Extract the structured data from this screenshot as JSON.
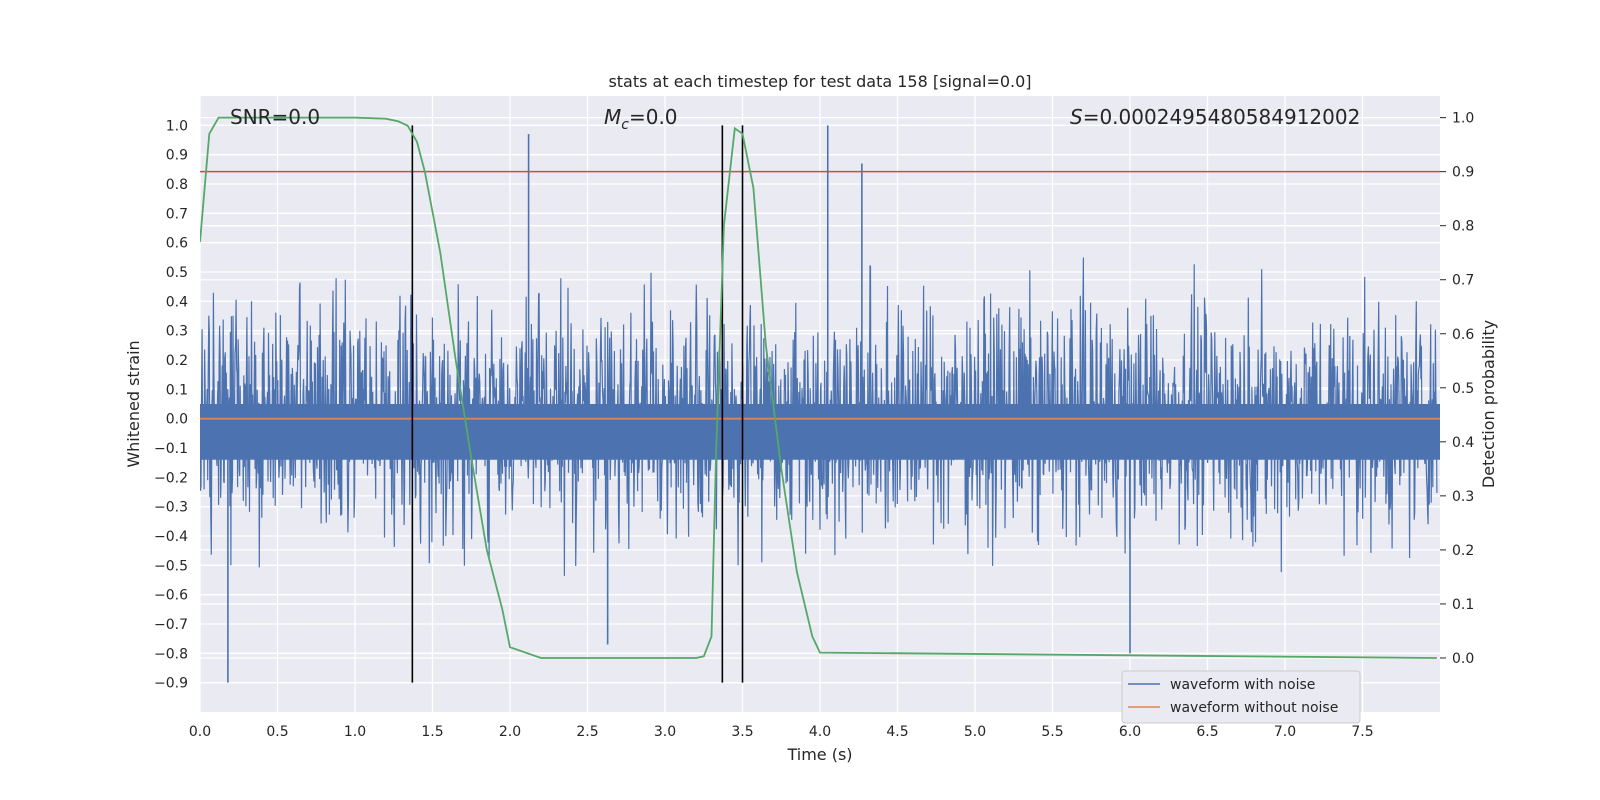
{
  "chart_data": {
    "type": "line",
    "title": "stats at each timestep for test data 158 [signal=0.0]",
    "xlabel": "Time (s)",
    "ylabel": "Whitened strain",
    "ylabel_right": "Detection probability",
    "xlim": [
      0.0,
      8.0
    ],
    "ylim": [
      -1.0,
      1.1
    ],
    "ylim_right": [
      -0.1,
      1.04
    ],
    "x_ticks": [
      "0.0",
      "0.5",
      "1.0",
      "1.5",
      "2.0",
      "2.5",
      "3.0",
      "3.5",
      "4.0",
      "4.5",
      "5.0",
      "5.5",
      "6.0",
      "6.5",
      "7.0",
      "7.5"
    ],
    "y_ticks": [
      "1.0",
      "0.9",
      "0.8",
      "0.7",
      "0.6",
      "0.5",
      "0.4",
      "0.3",
      "0.2",
      "0.1",
      "0.0",
      "−0.1",
      "−0.2",
      "−0.3",
      "−0.4",
      "−0.5",
      "−0.6",
      "−0.7",
      "−0.8",
      "−0.9"
    ],
    "y_ticks_right": [
      "1.0",
      "0.9",
      "0.8",
      "0.7",
      "0.6",
      "0.5",
      "0.4",
      "0.3",
      "0.2",
      "0.1",
      "0.0"
    ],
    "grid": true,
    "legend_position": "bottom-right",
    "annotations": {
      "snr": "SNR=0.0",
      "mc_symbol": "M",
      "mc_sub": "c",
      "mc_value": "=0.0",
      "s_symbol": "S",
      "s_value": "=0.0002495480584912002"
    },
    "series": [
      {
        "name": "waveform with noise",
        "color": "#4c72b0",
        "kind": "noise",
        "typical_amplitude": 0.5,
        "peaks": [
          [
            2.12,
            0.97
          ],
          [
            4.05,
            1.0
          ],
          [
            4.27,
            0.87
          ],
          [
            0.18,
            -0.9
          ],
          [
            6.0,
            -0.8
          ],
          [
            2.63,
            -0.77
          ]
        ]
      },
      {
        "name": "waveform without noise",
        "color": "#dd8452",
        "kind": "constant",
        "value": 0.0
      },
      {
        "name": "detection probability",
        "color": "#55a868",
        "axis": "right",
        "x": [
          0.0,
          0.06,
          0.12,
          0.2,
          0.5,
          1.0,
          1.2,
          1.28,
          1.34,
          1.4,
          1.45,
          1.55,
          1.65,
          1.75,
          1.85,
          1.95,
          2.0,
          2.2,
          3.0,
          3.2,
          3.25,
          3.3,
          3.33,
          3.38,
          3.45,
          3.5,
          3.57,
          3.65,
          3.75,
          3.85,
          3.95,
          4.0,
          7.98
        ],
        "y": [
          0.77,
          0.97,
          1.0,
          1.0,
          1.0,
          1.0,
          0.998,
          0.993,
          0.985,
          0.955,
          0.9,
          0.75,
          0.55,
          0.37,
          0.2,
          0.09,
          0.02,
          0.0,
          0.0,
          0.0,
          0.003,
          0.04,
          0.38,
          0.8,
          0.98,
          0.97,
          0.87,
          0.58,
          0.35,
          0.16,
          0.04,
          0.01,
          0.0
        ]
      }
    ],
    "threshold_right": {
      "value": 0.9,
      "color": "#c44e52"
    },
    "vertical_lines": [
      1.37,
      3.37,
      3.5
    ]
  }
}
